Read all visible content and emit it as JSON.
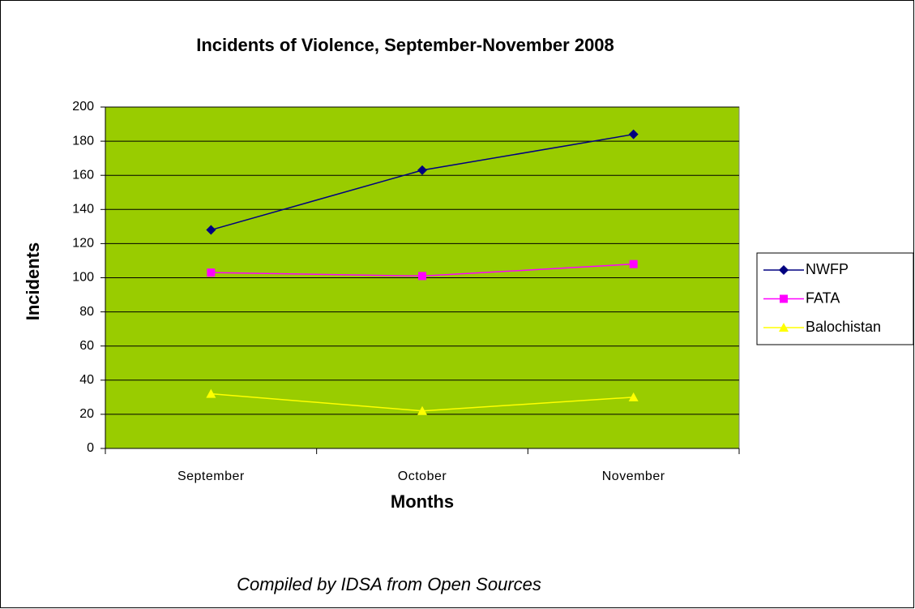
{
  "chart_data": {
    "type": "line",
    "title": "Incidents of Violence, September-November 2008",
    "x_label": "Months",
    "y_label": "Incidents",
    "caption": "Compiled by IDSA from Open Sources",
    "categories": [
      "September",
      "October",
      "November"
    ],
    "series": [
      {
        "name": "NWFP",
        "color": "#000080",
        "marker": "diamond",
        "values": [
          128,
          163,
          184
        ]
      },
      {
        "name": "FATA",
        "color": "#ff00ff",
        "marker": "square",
        "values": [
          103,
          101,
          108
        ]
      },
      {
        "name": "Balochistan",
        "color": "#ffff00",
        "marker": "triangle",
        "values": [
          32,
          22,
          30
        ]
      }
    ],
    "ylim": [
      0,
      200
    ],
    "yticks": [
      0,
      20,
      40,
      60,
      80,
      100,
      120,
      140,
      160,
      180,
      200
    ],
    "grid": true,
    "legend": "right",
    "background": "#99cc00"
  }
}
